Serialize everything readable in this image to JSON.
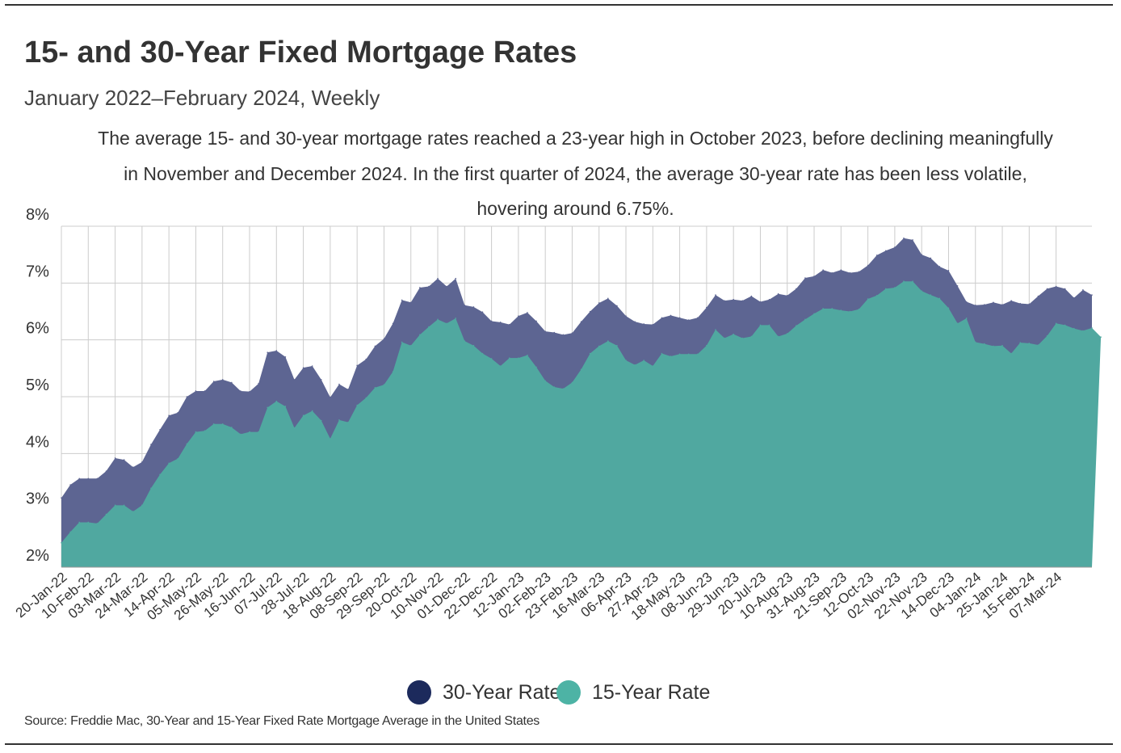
{
  "header": {
    "title": "15- and 30-Year Fixed Mortgage Rates",
    "subtitle": "January 2022–February 2024, Weekly",
    "annotation_lines": [
      "The average 15- and 30-year mortgage rates reached a 23-year high in October 2023, before declining meaningfully",
      "in November and December 2024. In the first quarter of 2024, the average 30-year rate has been less volatile,",
      "hovering around 6.75%."
    ]
  },
  "legend": {
    "items": [
      {
        "label": "30-Year Rate",
        "color": "#1c2a5c"
      },
      {
        "label": "15-Year Rate",
        "color": "#4db3a5"
      }
    ]
  },
  "source": "Source:  Freddie Mac, 30-Year  and 15-Year Fixed Rate Mortgage Average in the United States",
  "colors": {
    "area_30": "#5d6592",
    "area_15": "#50a8a0",
    "grid": "#cccccc",
    "text": "#333333"
  },
  "chart_data": {
    "type": "area",
    "ylim": [
      2,
      8
    ],
    "yticks": [
      "2%",
      "3%",
      "4%",
      "5%",
      "6%",
      "7%",
      "8%"
    ],
    "grid": true,
    "legend_position": "bottom",
    "x_tick_labels": [
      "20-Jan-22",
      "10-Feb-22",
      "03-Mar-22",
      "24-Mar-22",
      "14-Apr-22",
      "05-May-22",
      "26-May-22",
      "16-Jun-22",
      "07-Jul-22",
      "28-Jul-22",
      "18-Aug-22",
      "08-Sep-22",
      "29-Sep-22",
      "20-Oct-22",
      "10-Nov-22",
      "01-Dec-22",
      "22-Dec-22",
      "12-Jan-23",
      "02-Feb-23",
      "23-Feb-23",
      "16-Mar-23",
      "06-Apr-23",
      "27-Apr-23",
      "18-May-23",
      "08-Jun-23",
      "29-Jun-23",
      "20-Jul-23",
      "10-Aug-23",
      "31-Aug-23",
      "21-Sep-23",
      "12-Oct-23",
      "02-Nov-23",
      "22-Nov-23",
      "14-Dec-23",
      "04-Jan-24",
      "25-Jan-24",
      "15-Feb-24",
      "07-Mar-24"
    ],
    "series": [
      {
        "name": "30-Year Rate",
        "values": [
          3.22,
          3.45,
          3.56,
          3.56,
          3.56,
          3.69,
          3.92,
          3.89,
          3.76,
          3.85,
          4.16,
          4.42,
          4.67,
          4.72,
          5.0,
          5.1,
          5.1,
          5.27,
          5.3,
          5.25,
          5.1,
          5.09,
          5.23,
          5.78,
          5.81,
          5.7,
          5.3,
          5.51,
          5.54,
          5.3,
          4.99,
          5.22,
          5.13,
          5.55,
          5.66,
          5.89,
          6.02,
          6.29,
          6.7,
          6.66,
          6.92,
          6.94,
          7.08,
          6.94,
          7.08,
          6.61,
          6.58,
          6.49,
          6.33,
          6.31,
          6.27,
          6.42,
          6.48,
          6.33,
          6.15,
          6.13,
          6.09,
          6.12,
          6.32,
          6.5,
          6.65,
          6.73,
          6.6,
          6.42,
          6.32,
          6.28,
          6.27,
          6.39,
          6.43,
          6.39,
          6.35,
          6.39,
          6.57,
          6.79,
          6.69,
          6.71,
          6.69,
          6.77,
          6.67,
          6.71,
          6.81,
          6.78,
          6.9,
          7.09,
          7.12,
          7.23,
          7.18,
          7.23,
          7.18,
          7.2,
          7.31,
          7.49,
          7.57,
          7.63,
          7.79,
          7.76,
          7.5,
          7.44,
          7.29,
          7.22,
          6.95,
          6.67,
          6.61,
          6.62,
          6.66,
          6.62,
          6.69,
          6.64,
          6.63,
          6.77,
          6.9,
          6.94,
          6.9,
          6.74,
          6.88,
          6.79
        ]
      },
      {
        "name": "15-Year Rate",
        "values": [
          2.43,
          2.62,
          2.79,
          2.79,
          2.77,
          2.93,
          3.09,
          3.09,
          2.98,
          3.09,
          3.39,
          3.63,
          3.83,
          3.91,
          4.17,
          4.38,
          4.4,
          4.52,
          4.52,
          4.46,
          4.34,
          4.38,
          4.38,
          4.81,
          4.92,
          4.83,
          4.45,
          4.67,
          4.75,
          4.58,
          4.26,
          4.59,
          4.55,
          4.85,
          4.98,
          5.16,
          5.21,
          5.44,
          5.96,
          5.9,
          6.09,
          6.23,
          6.36,
          6.29,
          6.38,
          5.98,
          5.9,
          5.76,
          5.67,
          5.54,
          5.68,
          5.68,
          5.73,
          5.52,
          5.28,
          5.17,
          5.14,
          5.25,
          5.48,
          5.76,
          5.89,
          5.98,
          5.9,
          5.64,
          5.56,
          5.64,
          5.54,
          5.76,
          5.71,
          5.75,
          5.75,
          5.75,
          5.9,
          6.18,
          6.03,
          6.1,
          6.03,
          6.06,
          6.26,
          6.26,
          6.06,
          6.11,
          6.25,
          6.36,
          6.46,
          6.55,
          6.55,
          6.52,
          6.5,
          6.54,
          6.72,
          6.78,
          6.9,
          6.92,
          7.03,
          7.03,
          6.86,
          6.79,
          6.73,
          6.56,
          6.29,
          6.38,
          5.96,
          5.93,
          5.89,
          5.9,
          5.76,
          5.95,
          5.94,
          5.91,
          6.07,
          6.29,
          6.26,
          6.2,
          6.16,
          6.21,
          6.05
        ]
      }
    ]
  }
}
